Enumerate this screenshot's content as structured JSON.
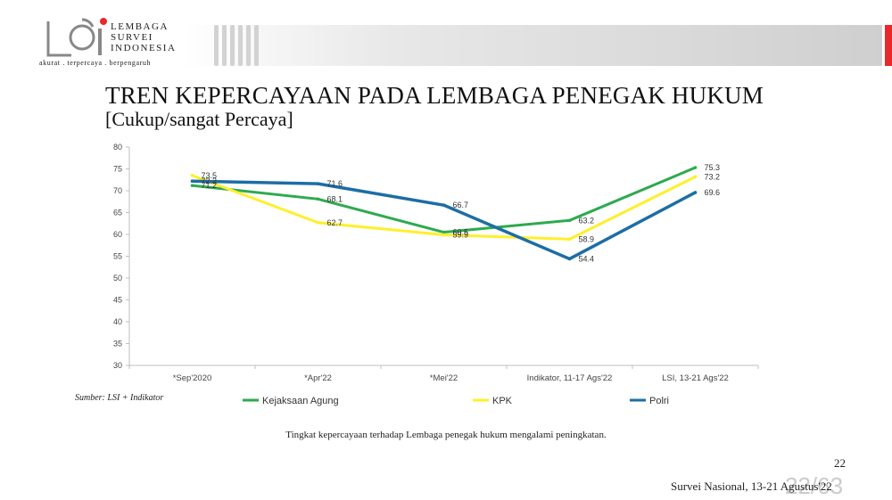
{
  "header": {
    "logo_text_line1": "LEMBAGA",
    "logo_text_line2": "SURVEI",
    "logo_text_line3": "INDONESIA",
    "tagline": "akurat . terpercaya . berpengaruh",
    "accent_red": "#e8282b"
  },
  "slide": {
    "title": "TREN KEPERCAYAAN PADA LEMBAGA PENEGAK HUKUM",
    "subtitle": "[Cukup/sangat Percaya]",
    "source": "Sumber: LSI + Indikator",
    "caption": "Tingkat kepercayaan terhadap Lembaga penegak hukum mengalami peningkatan.",
    "page_number": "22",
    "footer": "Survei Nasional, 13-21 Agustus'22",
    "watermark": "22/63"
  },
  "chart_data": {
    "type": "line",
    "categories": [
      "*Sep'2020",
      "*Apr'22",
      "*Mei'22",
      "Indikator, 11-17 Ags'22",
      "LSI, 13-21 Ags'22"
    ],
    "ylim": [
      30,
      80
    ],
    "yticks": [
      30,
      35,
      40,
      45,
      50,
      55,
      60,
      65,
      70,
      75,
      80
    ],
    "grid": false,
    "legend_position": "bottom",
    "series": [
      {
        "name": "Kejaksaan Agung",
        "color": "#2eaa4f",
        "values": [
          71.2,
          68.1,
          60.5,
          63.2,
          75.3
        ],
        "labels": [
          "71.2",
          "68.1",
          "60.5",
          "63.2",
          "75.3"
        ]
      },
      {
        "name": "KPK",
        "color": "#ffef2b",
        "values": [
          73.5,
          62.7,
          59.9,
          58.9,
          73.2
        ],
        "labels": [
          "73.5",
          "62.7",
          "59.9",
          "58.9",
          "73.2"
        ]
      },
      {
        "name": "Polri",
        "color": "#1c6ea4",
        "values": [
          72.2,
          71.6,
          66.7,
          54.4,
          69.6
        ],
        "labels": [
          "72.2",
          "71.6",
          "66.7",
          "54.4",
          "69.6"
        ]
      }
    ]
  }
}
